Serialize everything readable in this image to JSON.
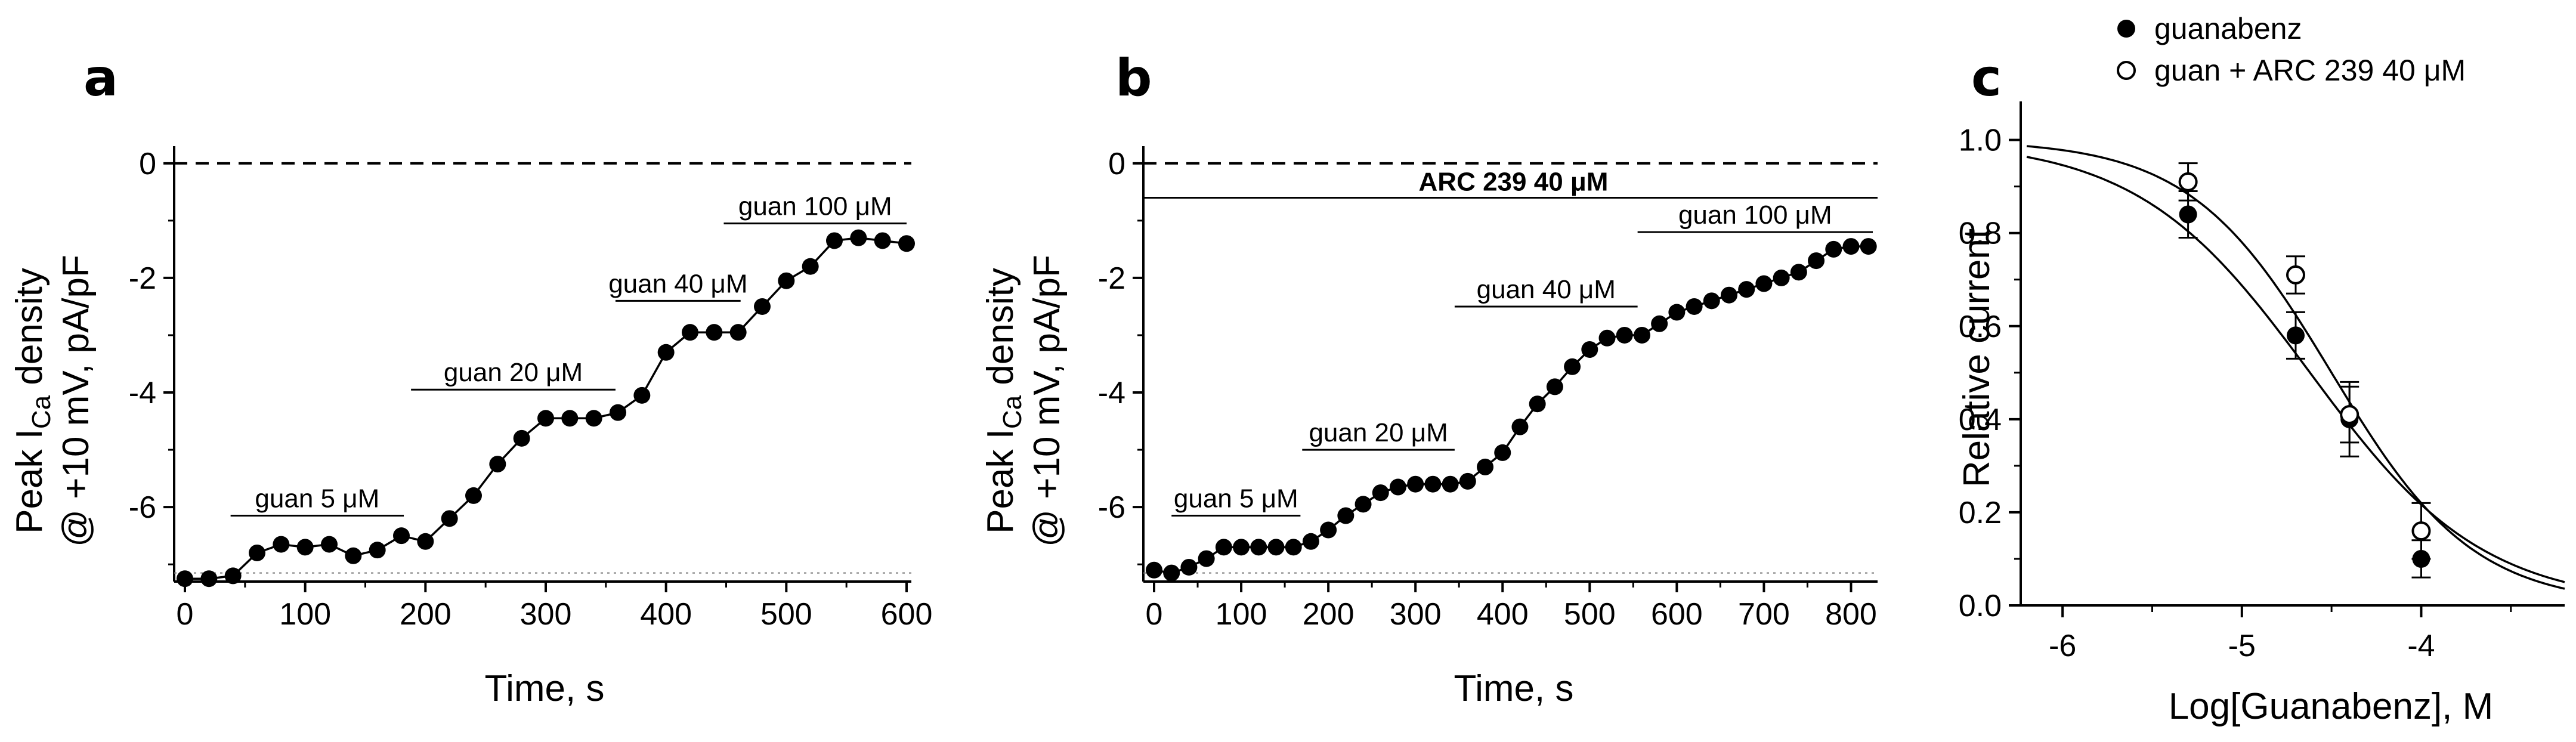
{
  "colors": {
    "ink": "#000000",
    "background": "#ffffff"
  },
  "chart_data": [
    {
      "id": "a",
      "panel_label": "a",
      "type": "line",
      "title": "",
      "xlabel": "Time, s",
      "ylabel_main": "Peak I",
      "ylabel_sub": "Ca",
      "ylabel_rest": " density",
      "ylabel_line2": "@ +10 mV, pA/pF",
      "xlim": [
        0,
        600
      ],
      "ylim": [
        -7.3,
        0.3
      ],
      "xticks": [
        0,
        100,
        200,
        300,
        400,
        500,
        600
      ],
      "xtick_labels": [
        "0",
        "100",
        "200",
        "300",
        "400",
        "500",
        "600"
      ],
      "yticks": [
        0,
        -2,
        -4,
        -6
      ],
      "ytick_labels": [
        "0",
        "-2",
        "-4",
        "-6"
      ],
      "zero_line": 0,
      "baseline": -7.15,
      "series": [
        {
          "name": "guanabenz",
          "marker": "filled",
          "x": [
            0,
            20,
            40,
            60,
            80,
            100,
            120,
            140,
            160,
            180,
            200,
            220,
            240,
            260,
            280,
            300,
            320,
            340,
            360,
            380,
            400,
            420,
            440,
            460,
            480,
            500,
            520,
            540,
            560,
            580,
            600
          ],
          "y": [
            -7.25,
            -7.25,
            -7.2,
            -6.8,
            -6.65,
            -6.7,
            -6.65,
            -6.85,
            -6.75,
            -6.5,
            -6.6,
            -6.2,
            -5.8,
            -5.25,
            -4.8,
            -4.45,
            -4.45,
            -4.45,
            -4.35,
            -4.05,
            -3.3,
            -2.95,
            -2.95,
            -2.95,
            -2.5,
            -2.05,
            -1.8,
            -1.35,
            -1.3,
            -1.35,
            -1.4
          ]
        }
      ],
      "segments": [
        {
          "label": "guan 5 μM",
          "x0": 38,
          "x1": 182,
          "y": -6.15
        },
        {
          "label": "guan 20 μM",
          "x0": 188,
          "x1": 358,
          "y": -3.95
        },
        {
          "label": "guan 40 μM",
          "x0": 358,
          "x1": 462,
          "y": -2.4
        },
        {
          "label": "guan 100 μM",
          "x0": 448,
          "x1": 600,
          "y": -1.05
        }
      ]
    },
    {
      "id": "b",
      "panel_label": "b",
      "type": "line",
      "title": "",
      "xlabel": "Time, s",
      "ylabel_main": "Peak I",
      "ylabel_sub": "Ca",
      "ylabel_rest": " density",
      "ylabel_line2": "@ +10 mV, pA/pF",
      "xlim": [
        0,
        825
      ],
      "ylim": [
        -7.3,
        0.3
      ],
      "xticks": [
        0,
        100,
        200,
        300,
        400,
        500,
        600,
        700,
        800
      ],
      "xtick_labels": [
        "0",
        "100",
        "200",
        "300",
        "400",
        "500",
        "600",
        "700",
        "800"
      ],
      "yticks": [
        0,
        -2,
        -4,
        -6
      ],
      "ytick_labels": [
        "0",
        "-2",
        "-4",
        "-6"
      ],
      "zero_line": 0,
      "baseline": -7.15,
      "series": [
        {
          "name": "guan + ARC 239 40 μM",
          "marker": "filled",
          "x": [
            0,
            20,
            40,
            60,
            80,
            100,
            120,
            140,
            160,
            180,
            200,
            220,
            240,
            260,
            280,
            300,
            320,
            340,
            360,
            380,
            400,
            420,
            440,
            460,
            480,
            500,
            520,
            540,
            560,
            580,
            600,
            620,
            640,
            660,
            680,
            700,
            720,
            740,
            760,
            780,
            800,
            820
          ],
          "y": [
            -7.1,
            -7.15,
            -7.05,
            -6.9,
            -6.7,
            -6.7,
            -6.7,
            -6.7,
            -6.7,
            -6.6,
            -6.4,
            -6.15,
            -5.95,
            -5.75,
            -5.65,
            -5.6,
            -5.6,
            -5.6,
            -5.55,
            -5.3,
            -5.05,
            -4.6,
            -4.2,
            -3.9,
            -3.55,
            -3.25,
            -3.05,
            -3.0,
            -3.0,
            -2.8,
            -2.6,
            -2.5,
            -2.4,
            -2.3,
            -2.2,
            -2.1,
            -2.0,
            -1.9,
            -1.7,
            -1.5,
            -1.45,
            -1.45
          ]
        }
      ],
      "wide_segment": {
        "label": "ARC 239 40 μM",
        "x0": 0,
        "x1": 825,
        "y": -0.6
      },
      "segments": [
        {
          "label": "guan 5 μM",
          "x0": 20,
          "x1": 168,
          "y": -6.15
        },
        {
          "label": "guan 20 μM",
          "x0": 170,
          "x1": 345,
          "y": -5.0
        },
        {
          "label": "guan 40 μM",
          "x0": 345,
          "x1": 555,
          "y": -2.5
        },
        {
          "label": "guan 100 μM",
          "x0": 555,
          "x1": 825,
          "y": -1.2
        }
      ]
    },
    {
      "id": "c",
      "panel_label": "c",
      "type": "scatter",
      "title": "",
      "xlabel": "Log[Guanabenz], M",
      "ylabel": "Relative current",
      "xlim": [
        -6.2,
        -3.2
      ],
      "ylim": [
        0,
        1.07
      ],
      "xticks": [
        -6,
        -5,
        -4
      ],
      "xtick_labels": [
        "-6",
        "-5",
        "-4"
      ],
      "yticks": [
        0.0,
        0.2,
        0.4,
        0.6,
        0.8,
        1.0
      ],
      "ytick_labels": [
        "0.0",
        "0.2",
        "0.4",
        "0.6",
        "0.8",
        "1.0"
      ],
      "legend": "top-left",
      "series": [
        {
          "name": "guanabenz",
          "marker": "filled",
          "x": [
            -5.3,
            -4.7,
            -4.4,
            -4.0
          ],
          "y": [
            0.84,
            0.58,
            0.4,
            0.1
          ],
          "err": [
            0.05,
            0.05,
            0.08,
            0.04
          ],
          "fit": {
            "ic50_log": -4.62,
            "hill": 0.9
          }
        },
        {
          "name": "guan + ARC 239 40 μM",
          "marker": "open",
          "x": [
            -5.3,
            -4.7,
            -4.4,
            -4.0
          ],
          "y": [
            0.91,
            0.71,
            0.41,
            0.16
          ],
          "err": [
            0.04,
            0.04,
            0.06,
            0.06
          ],
          "fit": {
            "ic50_log": -4.5,
            "hill": 1.1
          }
        }
      ]
    }
  ]
}
